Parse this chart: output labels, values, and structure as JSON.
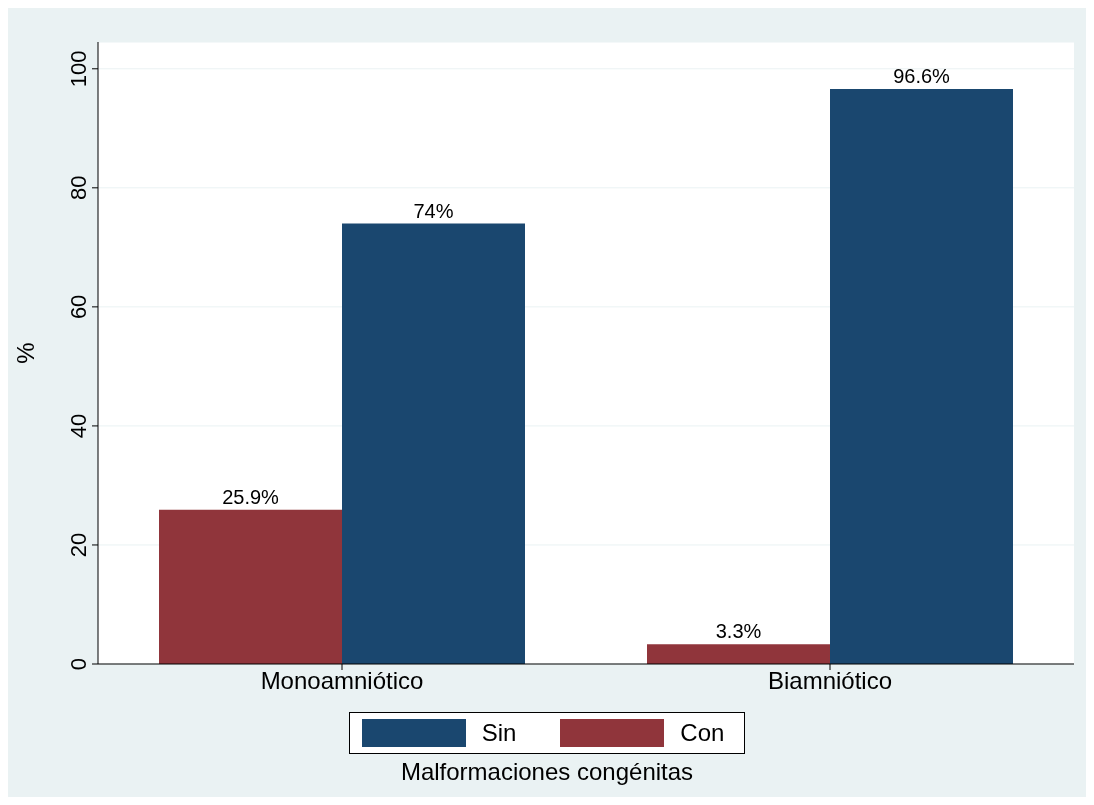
{
  "chart_data": {
    "type": "bar",
    "categories": [
      "Monoamniótico",
      "Biamniótico"
    ],
    "series": [
      {
        "name": "Con",
        "color": "#90353b",
        "values": [
          25.9,
          3.3
        ],
        "value_labels": [
          "25.9%",
          "3.3%"
        ]
      },
      {
        "name": "Sin",
        "color": "#1a476f",
        "values": [
          74,
          96.6
        ],
        "value_labels": [
          "74%",
          "96.6%"
        ]
      }
    ],
    "ylabel": "%",
    "ylim": [
      0,
      104.5
    ],
    "yticks": [
      0,
      20,
      40,
      60,
      80,
      100
    ],
    "grid": "y",
    "legend": "bottom",
    "legend_title": "Malformaciones congénitas"
  }
}
